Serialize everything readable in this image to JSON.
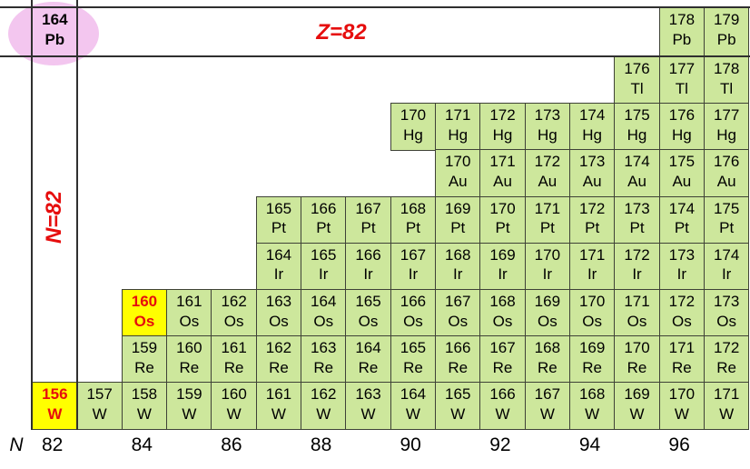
{
  "labels": {
    "z_label": "Z=82",
    "n_label": "N=82",
    "axis_label": "N"
  },
  "colors": {
    "cell_green": "#cde79c",
    "cell_border": "#3f4237",
    "highlight_yellow": "#ffff00",
    "accent_red": "#e60d0d",
    "ellipse_pink": "#f3c6ef",
    "line_dark": "#2f2f2f",
    "text_black": "#000000"
  },
  "chart_data": {
    "type": "table",
    "description": "Section of the chart of nuclides around Z=82, N=82; rows are elements (proton number), columns are neutron number N",
    "x_axis": {
      "label": "N",
      "ticks": [
        82,
        84,
        86,
        88,
        90,
        92,
        94,
        96
      ],
      "range": [
        82,
        97
      ]
    },
    "annotations": {
      "proton_line": "Z=82",
      "neutron_line": "N=82",
      "circled_nuclide": "164Pb",
      "yellow_nuclides": [
        "160Os",
        "156W"
      ]
    },
    "rows": [
      {
        "symbol": "Pb",
        "cells": [
          {
            "a": 164,
            "n": 82,
            "style": "circled"
          },
          {
            "a": 178,
            "n": 96
          },
          {
            "a": 179,
            "n": 97
          }
        ]
      },
      {
        "symbol": "Tl",
        "cells": [
          {
            "a": 176,
            "n": 95
          },
          {
            "a": 177,
            "n": 96
          },
          {
            "a": 178,
            "n": 97
          }
        ]
      },
      {
        "symbol": "Hg",
        "cells": [
          {
            "a": 170,
            "n": 90
          },
          {
            "a": 171,
            "n": 91
          },
          {
            "a": 172,
            "n": 92
          },
          {
            "a": 173,
            "n": 93
          },
          {
            "a": 174,
            "n": 94
          },
          {
            "a": 175,
            "n": 95
          },
          {
            "a": 176,
            "n": 96
          },
          {
            "a": 177,
            "n": 97
          }
        ]
      },
      {
        "symbol": "Au",
        "cells": [
          {
            "a": 170,
            "n": 91
          },
          {
            "a": 171,
            "n": 92
          },
          {
            "a": 172,
            "n": 93
          },
          {
            "a": 173,
            "n": 94
          },
          {
            "a": 174,
            "n": 95
          },
          {
            "a": 175,
            "n": 96
          },
          {
            "a": 176,
            "n": 97
          }
        ]
      },
      {
        "symbol": "Pt",
        "cells": [
          {
            "a": 165,
            "n": 87
          },
          {
            "a": 166,
            "n": 88
          },
          {
            "a": 167,
            "n": 89
          },
          {
            "a": 168,
            "n": 90
          },
          {
            "a": 169,
            "n": 91
          },
          {
            "a": 170,
            "n": 92
          },
          {
            "a": 171,
            "n": 93
          },
          {
            "a": 172,
            "n": 94
          },
          {
            "a": 173,
            "n": 95
          },
          {
            "a": 174,
            "n": 96
          },
          {
            "a": 175,
            "n": 97
          }
        ]
      },
      {
        "symbol": "Ir",
        "cells": [
          {
            "a": 164,
            "n": 87
          },
          {
            "a": 165,
            "n": 88
          },
          {
            "a": 166,
            "n": 89
          },
          {
            "a": 167,
            "n": 90
          },
          {
            "a": 168,
            "n": 91
          },
          {
            "a": 169,
            "n": 92
          },
          {
            "a": 170,
            "n": 93
          },
          {
            "a": 171,
            "n": 94
          },
          {
            "a": 172,
            "n": 95
          },
          {
            "a": 173,
            "n": 96
          },
          {
            "a": 174,
            "n": 97
          }
        ]
      },
      {
        "symbol": "Os",
        "cells": [
          {
            "a": 160,
            "n": 84,
            "style": "yellow"
          },
          {
            "a": 161,
            "n": 85
          },
          {
            "a": 162,
            "n": 86
          },
          {
            "a": 163,
            "n": 87
          },
          {
            "a": 164,
            "n": 88
          },
          {
            "a": 165,
            "n": 89
          },
          {
            "a": 166,
            "n": 90
          },
          {
            "a": 167,
            "n": 91
          },
          {
            "a": 168,
            "n": 92
          },
          {
            "a": 169,
            "n": 93
          },
          {
            "a": 170,
            "n": 94
          },
          {
            "a": 171,
            "n": 95
          },
          {
            "a": 172,
            "n": 96
          },
          {
            "a": 173,
            "n": 97
          }
        ]
      },
      {
        "symbol": "Re",
        "cells": [
          {
            "a": 159,
            "n": 84
          },
          {
            "a": 160,
            "n": 85
          },
          {
            "a": 161,
            "n": 86
          },
          {
            "a": 162,
            "n": 87
          },
          {
            "a": 163,
            "n": 88
          },
          {
            "a": 164,
            "n": 89
          },
          {
            "a": 165,
            "n": 90
          },
          {
            "a": 166,
            "n": 91
          },
          {
            "a": 167,
            "n": 92
          },
          {
            "a": 168,
            "n": 93
          },
          {
            "a": 169,
            "n": 94
          },
          {
            "a": 170,
            "n": 95
          },
          {
            "a": 171,
            "n": 96
          },
          {
            "a": 172,
            "n": 97
          }
        ]
      },
      {
        "symbol": "W",
        "cells": [
          {
            "a": 156,
            "n": 82,
            "style": "yellow"
          },
          {
            "a": 157,
            "n": 83
          },
          {
            "a": 158,
            "n": 84
          },
          {
            "a": 159,
            "n": 85
          },
          {
            "a": 160,
            "n": 86
          },
          {
            "a": 161,
            "n": 87
          },
          {
            "a": 162,
            "n": 88
          },
          {
            "a": 163,
            "n": 89
          },
          {
            "a": 164,
            "n": 90
          },
          {
            "a": 165,
            "n": 91
          },
          {
            "a": 166,
            "n": 92
          },
          {
            "a": 167,
            "n": 93
          },
          {
            "a": 168,
            "n": 94
          },
          {
            "a": 169,
            "n": 95
          },
          {
            "a": 170,
            "n": 96
          },
          {
            "a": 171,
            "n": 97
          }
        ]
      }
    ]
  }
}
